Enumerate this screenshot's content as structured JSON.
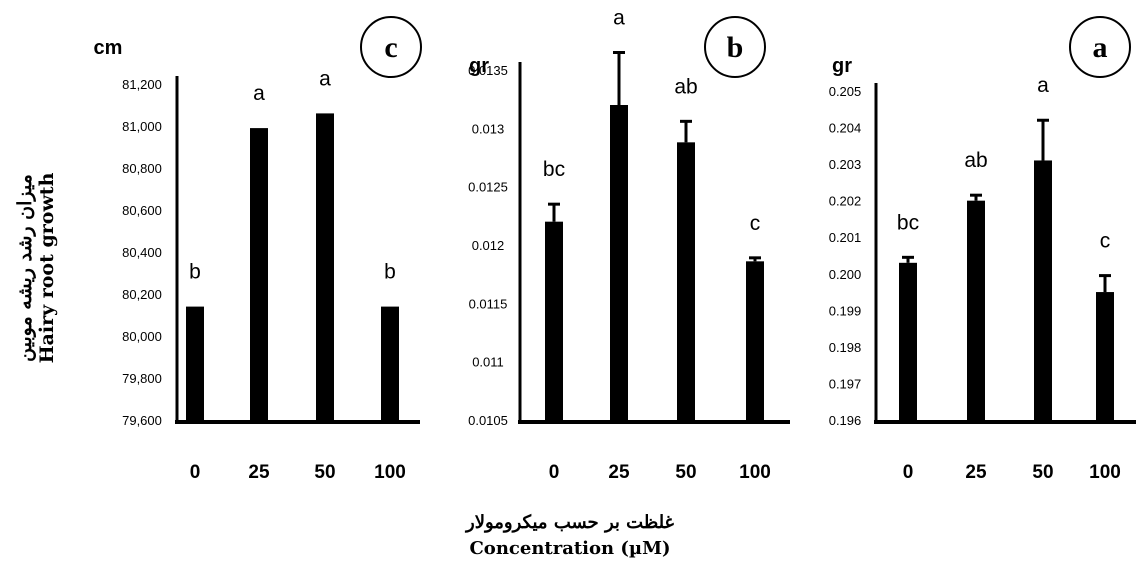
{
  "figure": {
    "ylabel_fa": "میزان رشد ریشه موبین",
    "ylabel_en": "Hairy root growth",
    "xlabel_fa": "غلظت بر حسب میکرومولار",
    "xlabel_en": "Concentration (µM)"
  },
  "chart_data": [
    {
      "panel": "c",
      "type": "bar",
      "unit": "cm",
      "categories": [
        "0",
        "25",
        "50",
        "100"
      ],
      "values": [
        80140,
        80990,
        81060,
        80140
      ],
      "letters": [
        "b",
        "a",
        "a",
        "b"
      ],
      "errors": [
        0,
        0,
        0,
        0
      ],
      "ylim": [
        79600,
        81200
      ],
      "yticks": [
        79600,
        79800,
        80000,
        80200,
        80400,
        80600,
        80800,
        81000,
        81200
      ],
      "ytick_labels": [
        "79,600",
        "79,800",
        "80,000",
        "80,200",
        "80,400",
        "80,600",
        "80,800",
        "81,000",
        "81,200"
      ]
    },
    {
      "panel": "b",
      "type": "bar",
      "unit": "gr",
      "categories": [
        "0",
        "25",
        "50",
        "100"
      ],
      "values": [
        0.0122,
        0.0132,
        0.01288,
        0.01186
      ],
      "letters": [
        "bc",
        "a",
        "ab",
        "c"
      ],
      "errors": [
        0.00015,
        0.00045,
        0.00018,
        3e-05
      ],
      "ylim": [
        0.0105,
        0.0135
      ],
      "yticks": [
        0.0105,
        0.011,
        0.0115,
        0.012,
        0.0125,
        0.013,
        0.0135
      ],
      "ytick_labels": [
        "0.0105",
        "0.011",
        "0.0115",
        "0.012",
        "0.0125",
        "0.013",
        "0.0135"
      ]
    },
    {
      "panel": "a",
      "type": "bar",
      "unit": "gr",
      "categories": [
        "0",
        "25",
        "50",
        "100"
      ],
      "values": [
        0.2003,
        0.202,
        0.2031,
        0.1995
      ],
      "letters": [
        "bc",
        "ab",
        "a",
        "c"
      ],
      "errors": [
        0.00015,
        0.00015,
        0.0011,
        0.00045
      ],
      "ylim": [
        0.196,
        0.205
      ],
      "yticks": [
        0.196,
        0.197,
        0.198,
        0.199,
        0.2,
        0.201,
        0.202,
        0.203,
        0.204,
        0.205
      ],
      "ytick_labels": [
        "0.196",
        "0.197",
        "0.198",
        "0.199",
        "0.200",
        "0.201",
        "0.202",
        "0.203",
        "0.204",
        "0.205"
      ]
    }
  ]
}
